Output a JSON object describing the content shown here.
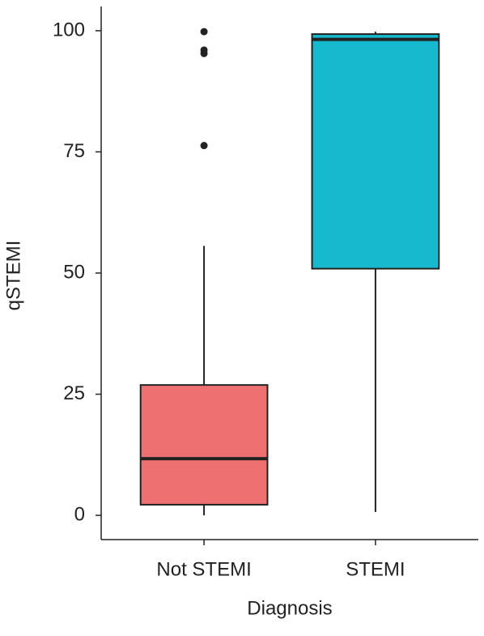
{
  "chart_data": {
    "type": "box",
    "x_label": "Diagnosis",
    "y_label": "qSTEMI",
    "categories": [
      "Not STEMI",
      "STEMI"
    ],
    "boxes": [
      {
        "min": 0,
        "q1": 2.2,
        "median": 11.7,
        "q3": 26.9,
        "max": 55.6,
        "outliers": [
          99.8,
          96,
          95.3,
          76.3
        ],
        "color": "#ee7070"
      },
      {
        "min": 0.7,
        "q1": 50.9,
        "median": 98.2,
        "q3": 99.3,
        "max": 99.8,
        "outliers": [],
        "color": "#17b9ce"
      }
    ],
    "ylim": [
      -5,
      105
    ],
    "yticks": [
      0,
      25,
      50,
      75,
      100
    ]
  }
}
